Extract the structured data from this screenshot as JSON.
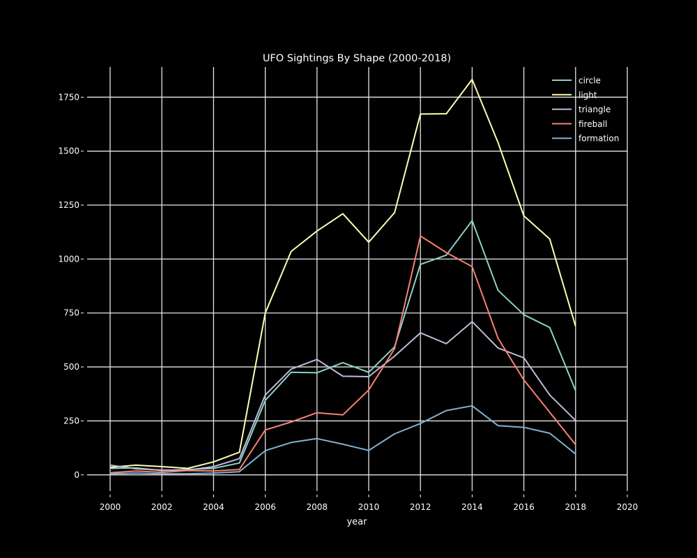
{
  "chart_data": {
    "type": "line",
    "title": "UFO Sightings By Shape (2000-2018)",
    "xlabel": "year",
    "ylabel": "",
    "xlim": [
      2000,
      2020
    ],
    "ylim": [
      -75,
      1890
    ],
    "x_ticks": [
      2000,
      2002,
      2004,
      2006,
      2008,
      2010,
      2012,
      2014,
      2016,
      2018,
      2020
    ],
    "y_ticks": [
      0,
      250,
      500,
      750,
      1000,
      1250,
      1500,
      1750
    ],
    "grid": true,
    "legend_position": "top-right",
    "background": "#000000",
    "x": [
      2000,
      2001,
      2002,
      2003,
      2004,
      2005,
      2006,
      2007,
      2008,
      2009,
      2010,
      2011,
      2012,
      2013,
      2014,
      2015,
      2016,
      2017,
      2018
    ],
    "series": [
      {
        "name": "circle",
        "color": "#8dd3c7",
        "values": [
          30,
          32,
          20,
          25,
          30,
          55,
          345,
          475,
          473,
          520,
          475,
          593,
          975,
          1018,
          1178,
          855,
          742,
          683,
          390
        ]
      },
      {
        "name": "light",
        "color": "#feffb3",
        "values": [
          35,
          45,
          38,
          30,
          60,
          105,
          750,
          1035,
          1130,
          1210,
          1078,
          1215,
          1672,
          1673,
          1832,
          1540,
          1200,
          1093,
          688
        ]
      },
      {
        "name": "triangle",
        "color": "#bfbbd9",
        "values": [
          45,
          28,
          22,
          22,
          38,
          75,
          370,
          490,
          535,
          457,
          455,
          550,
          658,
          608,
          710,
          588,
          542,
          370,
          252
        ]
      },
      {
        "name": "fireball",
        "color": "#fa8174",
        "values": [
          10,
          18,
          12,
          20,
          18,
          25,
          208,
          245,
          288,
          278,
          393,
          585,
          1107,
          1030,
          965,
          633,
          440,
          290,
          140
        ]
      },
      {
        "name": "formation",
        "color": "#81b1d2",
        "values": [
          5,
          8,
          5,
          5,
          8,
          15,
          112,
          150,
          168,
          142,
          113,
          190,
          238,
          298,
          320,
          228,
          220,
          193,
          97
        ]
      }
    ]
  }
}
